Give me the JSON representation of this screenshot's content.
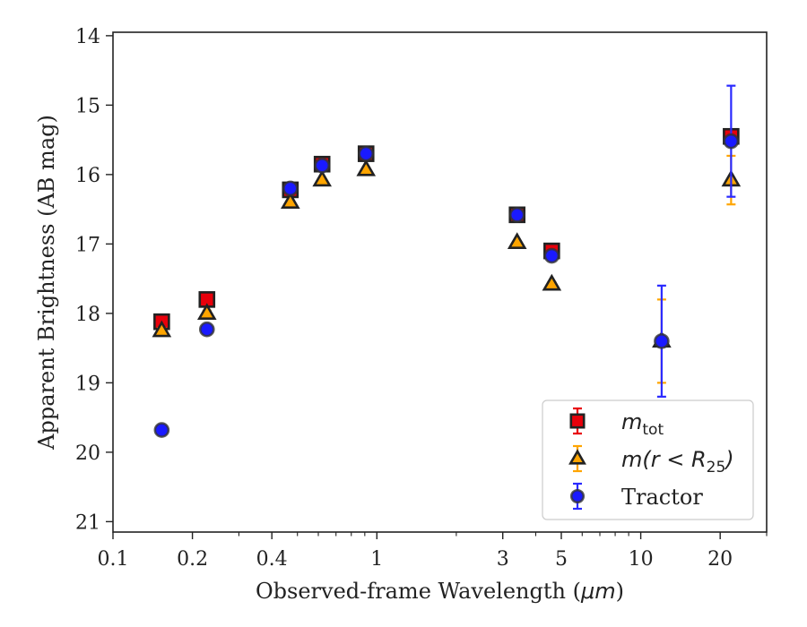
{
  "chart_data": {
    "type": "scatter",
    "xlabel_prefix": "Observed-frame Wavelength (",
    "xlabel_unit": "μm",
    "xlabel_suffix": ")",
    "ylabel": "Apparent Brightness (AB mag)",
    "xscale": "log",
    "xlim": [
      0.1,
      30
    ],
    "ylim": [
      21.15,
      13.95
    ],
    "y_inverted": true,
    "grid": false,
    "legend_position": "bottom-right",
    "xticks": [
      {
        "value": 0.1,
        "label": "0.1"
      },
      {
        "value": 0.2,
        "label": "0.2"
      },
      {
        "value": 0.4,
        "label": "0.4"
      },
      {
        "value": 1,
        "label": "1"
      },
      {
        "value": 3,
        "label": "3"
      },
      {
        "value": 5,
        "label": "5"
      },
      {
        "value": 10,
        "label": "10"
      },
      {
        "value": 20,
        "label": "20"
      }
    ],
    "yticks": [
      {
        "value": 14,
        "label": "14"
      },
      {
        "value": 15,
        "label": "15"
      },
      {
        "value": 16,
        "label": "16"
      },
      {
        "value": 17,
        "label": "17"
      },
      {
        "value": 18,
        "label": "18"
      },
      {
        "value": 19,
        "label": "19"
      },
      {
        "value": 20,
        "label": "20"
      },
      {
        "value": 21,
        "label": "21"
      }
    ],
    "series": [
      {
        "name": "m_tot",
        "legend_base": "m",
        "legend_sub": "tot",
        "marker": "square",
        "color": "#e8000b",
        "errcolor": "#e8000b",
        "points": [
          {
            "x": 0.153,
            "y": 18.12,
            "err": 0.06
          },
          {
            "x": 0.227,
            "y": 17.8,
            "err": 0.04
          },
          {
            "x": 0.47,
            "y": 16.22,
            "err": 0.02
          },
          {
            "x": 0.62,
            "y": 15.85,
            "err": 0.02
          },
          {
            "x": 0.91,
            "y": 15.7,
            "err": 0.02
          },
          {
            "x": 3.4,
            "y": 16.58,
            "err": 0.02
          },
          {
            "x": 4.6,
            "y": 17.1,
            "err": 0.03
          },
          {
            "x": 22,
            "y": 15.45,
            "err": 0.05
          }
        ]
      },
      {
        "name": "m(r < R_25)",
        "legend_base": "m(r < R",
        "legend_sub": "25",
        "legend_end": ")",
        "marker": "triangle",
        "color": "#ffa500",
        "errcolor": "#ffa500",
        "points": [
          {
            "x": 0.153,
            "y": 18.25,
            "err": 0.04
          },
          {
            "x": 0.227,
            "y": 18.0,
            "err": 0.04
          },
          {
            "x": 0.47,
            "y": 16.4,
            "err": 0.02
          },
          {
            "x": 0.62,
            "y": 16.08,
            "err": 0.02
          },
          {
            "x": 0.91,
            "y": 15.93,
            "err": 0.02
          },
          {
            "x": 3.4,
            "y": 16.98,
            "err": 0.02
          },
          {
            "x": 4.6,
            "y": 17.58,
            "err": 0.03
          },
          {
            "x": 12,
            "y": 18.4,
            "err": 0.6
          },
          {
            "x": 22,
            "y": 16.08,
            "err": 0.35
          }
        ]
      },
      {
        "name": "Tractor",
        "legend_base": "Tractor",
        "marker": "circle",
        "color": "#1a1aff",
        "errcolor": "#2a2aff",
        "points": [
          {
            "x": 0.153,
            "y": 19.68,
            "err": 0.06
          },
          {
            "x": 0.227,
            "y": 18.23,
            "err": 0.06
          },
          {
            "x": 0.47,
            "y": 16.2,
            "err": 0.03
          },
          {
            "x": 0.62,
            "y": 15.87,
            "err": 0.02
          },
          {
            "x": 0.91,
            "y": 15.7,
            "err": 0.02
          },
          {
            "x": 3.4,
            "y": 16.58,
            "err": 0.02
          },
          {
            "x": 4.6,
            "y": 17.17,
            "err": 0.03
          },
          {
            "x": 12,
            "y": 18.4,
            "err": 0.8
          },
          {
            "x": 22,
            "y": 15.52,
            "err": 0.8
          }
        ]
      }
    ]
  }
}
